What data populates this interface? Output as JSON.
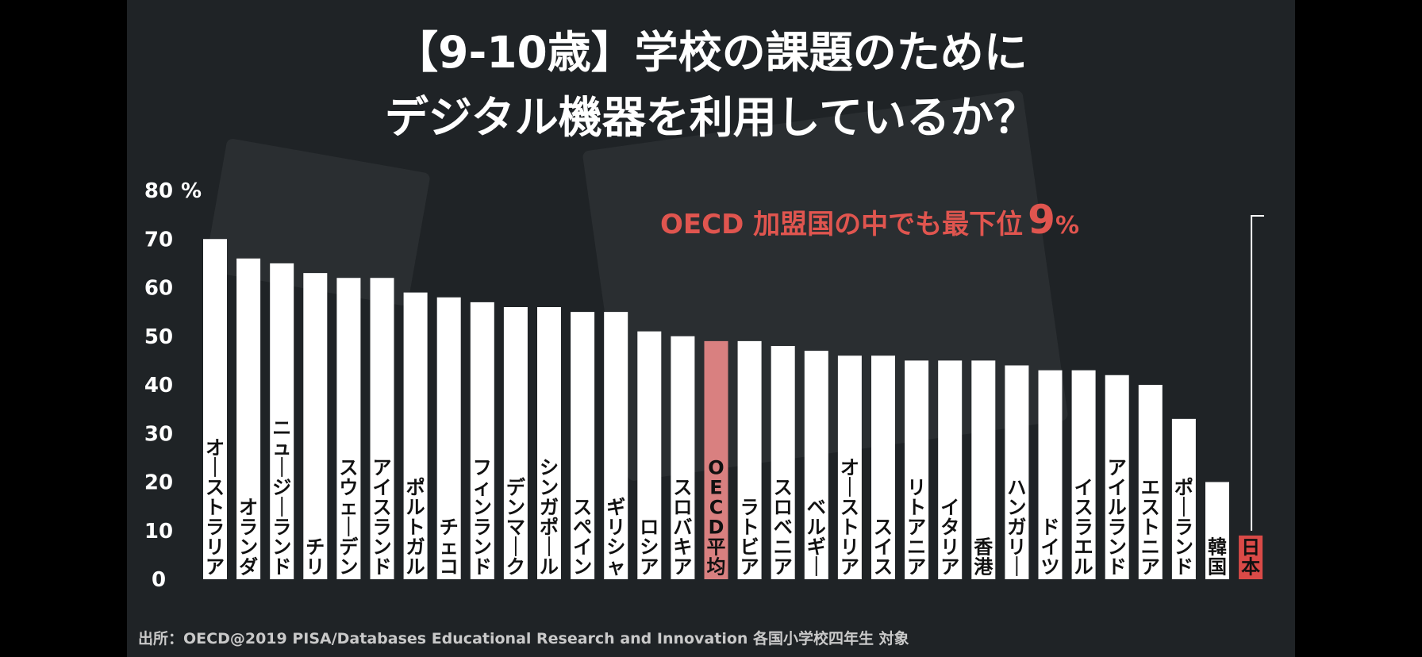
{
  "title_line1": "【9-10歳】学校の課題のために",
  "title_line2": "デジタル機器を利用しているか？",
  "annotation": {
    "text": "OECD 加盟国の中でも最下位",
    "value": "9",
    "unit": "%"
  },
  "source": "出所：OECD@2019 PISA/Databases Educational Research and Innovation 各国小学校四年生 対象",
  "colors": {
    "bar": "#ffffff",
    "highlight": "#d94a47",
    "oecd_bar": "#d98080",
    "background": "#1f2326"
  },
  "chart_data": {
    "type": "bar",
    "ylim": [
      0,
      80
    ],
    "yticks": [
      "0",
      "10",
      "20",
      "30",
      "40",
      "50",
      "60",
      "70",
      "80"
    ],
    "y_unit": "%",
    "grid": false,
    "categories": [
      "オーストラリア",
      "オランダ",
      "ニュージーランド",
      "チリ",
      "スウェーデン",
      "アイスランド",
      "ポルトガル",
      "チェコ",
      "フィンランド",
      "デンマーク",
      "シンガポール",
      "スペイン",
      "ギリシャ",
      "ロシア",
      "スロバキア",
      "OECD平均",
      "ラトビア",
      "スロベニア",
      "ベルギー",
      "オーストリア",
      "スイス",
      "リトアニア",
      "イタリア",
      "香港",
      "ハンガリー",
      "ドイツ",
      "イスラエル",
      "アイルランド",
      "エストニア",
      "ポーランド",
      "韓国",
      "日本"
    ],
    "values": [
      70,
      66,
      65,
      63,
      62,
      62,
      59,
      58,
      57,
      56,
      56,
      55,
      55,
      51,
      50,
      49,
      49,
      48,
      47,
      46,
      46,
      45,
      45,
      45,
      44,
      43,
      43,
      42,
      40,
      33,
      20,
      9
    ],
    "highlight_categories": [
      "OECD平均",
      "日本"
    ]
  }
}
